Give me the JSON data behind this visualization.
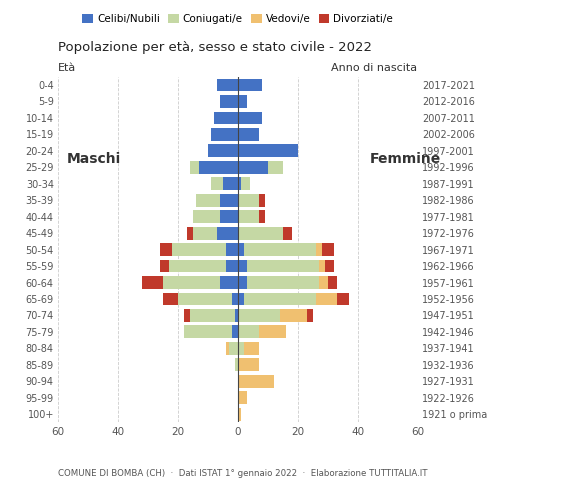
{
  "age_groups": [
    "100+",
    "95-99",
    "90-94",
    "85-89",
    "80-84",
    "75-79",
    "70-74",
    "65-69",
    "60-64",
    "55-59",
    "50-54",
    "45-49",
    "40-44",
    "35-39",
    "30-34",
    "25-29",
    "20-24",
    "15-19",
    "10-14",
    "5-9",
    "0-4"
  ],
  "birth_years": [
    "1921 o prima",
    "1922-1926",
    "1927-1931",
    "1932-1936",
    "1937-1941",
    "1942-1946",
    "1947-1951",
    "1952-1956",
    "1957-1961",
    "1962-1966",
    "1967-1971",
    "1972-1976",
    "1977-1981",
    "1982-1986",
    "1987-1991",
    "1992-1996",
    "1997-2001",
    "2002-2006",
    "2007-2011",
    "2012-2016",
    "2017-2021"
  ],
  "males": {
    "celibi": [
      0,
      0,
      0,
      0,
      0,
      2,
      1,
      2,
      6,
      4,
      4,
      7,
      6,
      6,
      5,
      13,
      10,
      9,
      8,
      6,
      7
    ],
    "coniugati": [
      0,
      0,
      0,
      1,
      3,
      16,
      15,
      18,
      19,
      19,
      18,
      8,
      9,
      8,
      4,
      3,
      0,
      0,
      0,
      0,
      0
    ],
    "vedovi": [
      0,
      0,
      0,
      0,
      1,
      0,
      0,
      0,
      0,
      0,
      0,
      0,
      0,
      0,
      0,
      0,
      0,
      0,
      0,
      0,
      0
    ],
    "divorziati": [
      0,
      0,
      0,
      0,
      0,
      0,
      2,
      5,
      7,
      3,
      4,
      2,
      0,
      0,
      0,
      0,
      0,
      0,
      0,
      0,
      0
    ]
  },
  "females": {
    "nubili": [
      0,
      0,
      0,
      0,
      0,
      0,
      0,
      2,
      3,
      3,
      2,
      0,
      0,
      0,
      1,
      10,
      20,
      7,
      8,
      3,
      8
    ],
    "coniugate": [
      0,
      0,
      0,
      0,
      2,
      7,
      14,
      24,
      24,
      24,
      24,
      15,
      7,
      7,
      3,
      5,
      0,
      0,
      0,
      0,
      0
    ],
    "vedove": [
      1,
      3,
      12,
      7,
      5,
      9,
      9,
      7,
      3,
      2,
      2,
      0,
      0,
      0,
      0,
      0,
      0,
      0,
      0,
      0,
      0
    ],
    "divorziate": [
      0,
      0,
      0,
      0,
      0,
      0,
      2,
      4,
      3,
      3,
      4,
      3,
      2,
      2,
      0,
      0,
      0,
      0,
      0,
      0,
      0
    ]
  },
  "color_celibe": "#4472c4",
  "color_coniugato": "#c5d8a4",
  "color_vedovo": "#f0c070",
  "color_divorziato": "#c0392b",
  "title": "Popolazione per età, sesso e stato civile - 2022",
  "subtitle": "COMUNE DI BOMBA (CH)  ·  Dati ISTAT 1° gennaio 2022  ·  Elaborazione TUTTITALIA.IT",
  "label_maschi": "Maschi",
  "label_femmine": "Femmine",
  "legend_labels": [
    "Celibi/Nubili",
    "Coniugati/e",
    "Vedovi/e",
    "Divorziati/e"
  ],
  "xlim": 60,
  "background_color": "#ffffff"
}
